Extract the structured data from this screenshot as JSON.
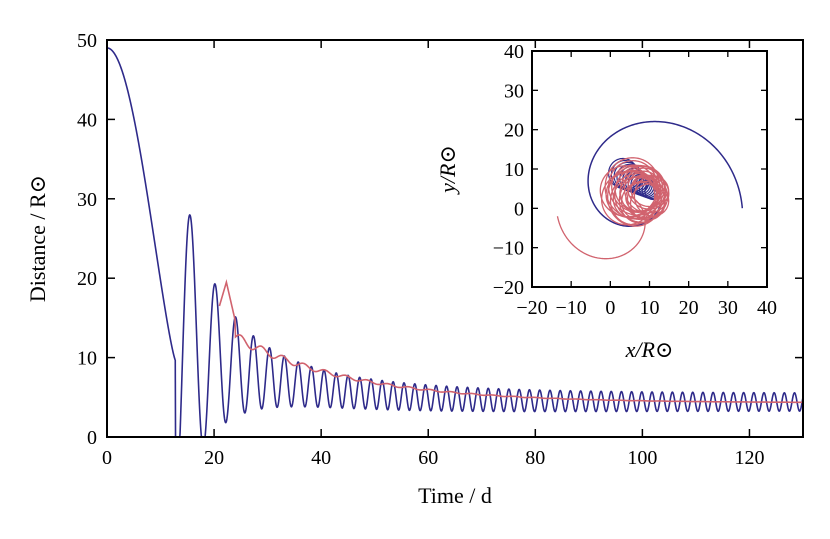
{
  "chart_data": [
    {
      "type": "line",
      "role": "main",
      "xlabel": "Time / d",
      "ylabel": "Distance / R⊙",
      "xlim": [
        0,
        130
      ],
      "ylim": [
        0,
        50
      ],
      "xticks": [
        0,
        20,
        40,
        60,
        80,
        100,
        120
      ],
      "yticks": [
        0,
        10,
        20,
        30,
        40,
        50
      ],
      "series": [
        {
          "name": "separation-blue",
          "color": "#2e2a8a",
          "description": "oscillating orbital separation decaying from 49 to ~4.5",
          "keypoints": [
            {
              "t": 0,
              "d": 49
            },
            {
              "t": 12.8,
              "d": 9.6
            },
            {
              "t": 16.3,
              "d": 23.6
            },
            {
              "t": 19.3,
              "d": 10.6
            },
            {
              "t": 22.0,
              "d": 20.4
            },
            {
              "t": 40,
              "d": 10.0
            },
            {
              "t": 60,
              "d": 6.0
            },
            {
              "t": 130,
              "d": 4.4
            }
          ]
        },
        {
          "name": "separation-red",
          "color": "#d1636e",
          "description": "smoothed separation starting near t=21",
          "keypoints": [
            {
              "t": 21.0,
              "d": 16.5
            },
            {
              "t": 22.3,
              "d": 19.5
            },
            {
              "t": 30,
              "d": 12.0
            },
            {
              "t": 50,
              "d": 7.5
            },
            {
              "t": 80,
              "d": 5.0
            },
            {
              "t": 130,
              "d": 4.3
            }
          ]
        }
      ]
    },
    {
      "type": "line",
      "role": "inset",
      "xlabel": "x/R⊙",
      "ylabel": "y/R⊙",
      "xlim": [
        -20,
        40
      ],
      "ylim": [
        -20,
        40
      ],
      "xticks": [
        -20,
        -10,
        0,
        10,
        20,
        30,
        40
      ],
      "yticks": [
        -20,
        -10,
        0,
        10,
        20,
        30,
        40
      ],
      "series": [
        {
          "name": "orbit-blue",
          "color": "#2e2a8a"
        },
        {
          "name": "orbit-red",
          "color": "#d1636e"
        }
      ]
    }
  ]
}
